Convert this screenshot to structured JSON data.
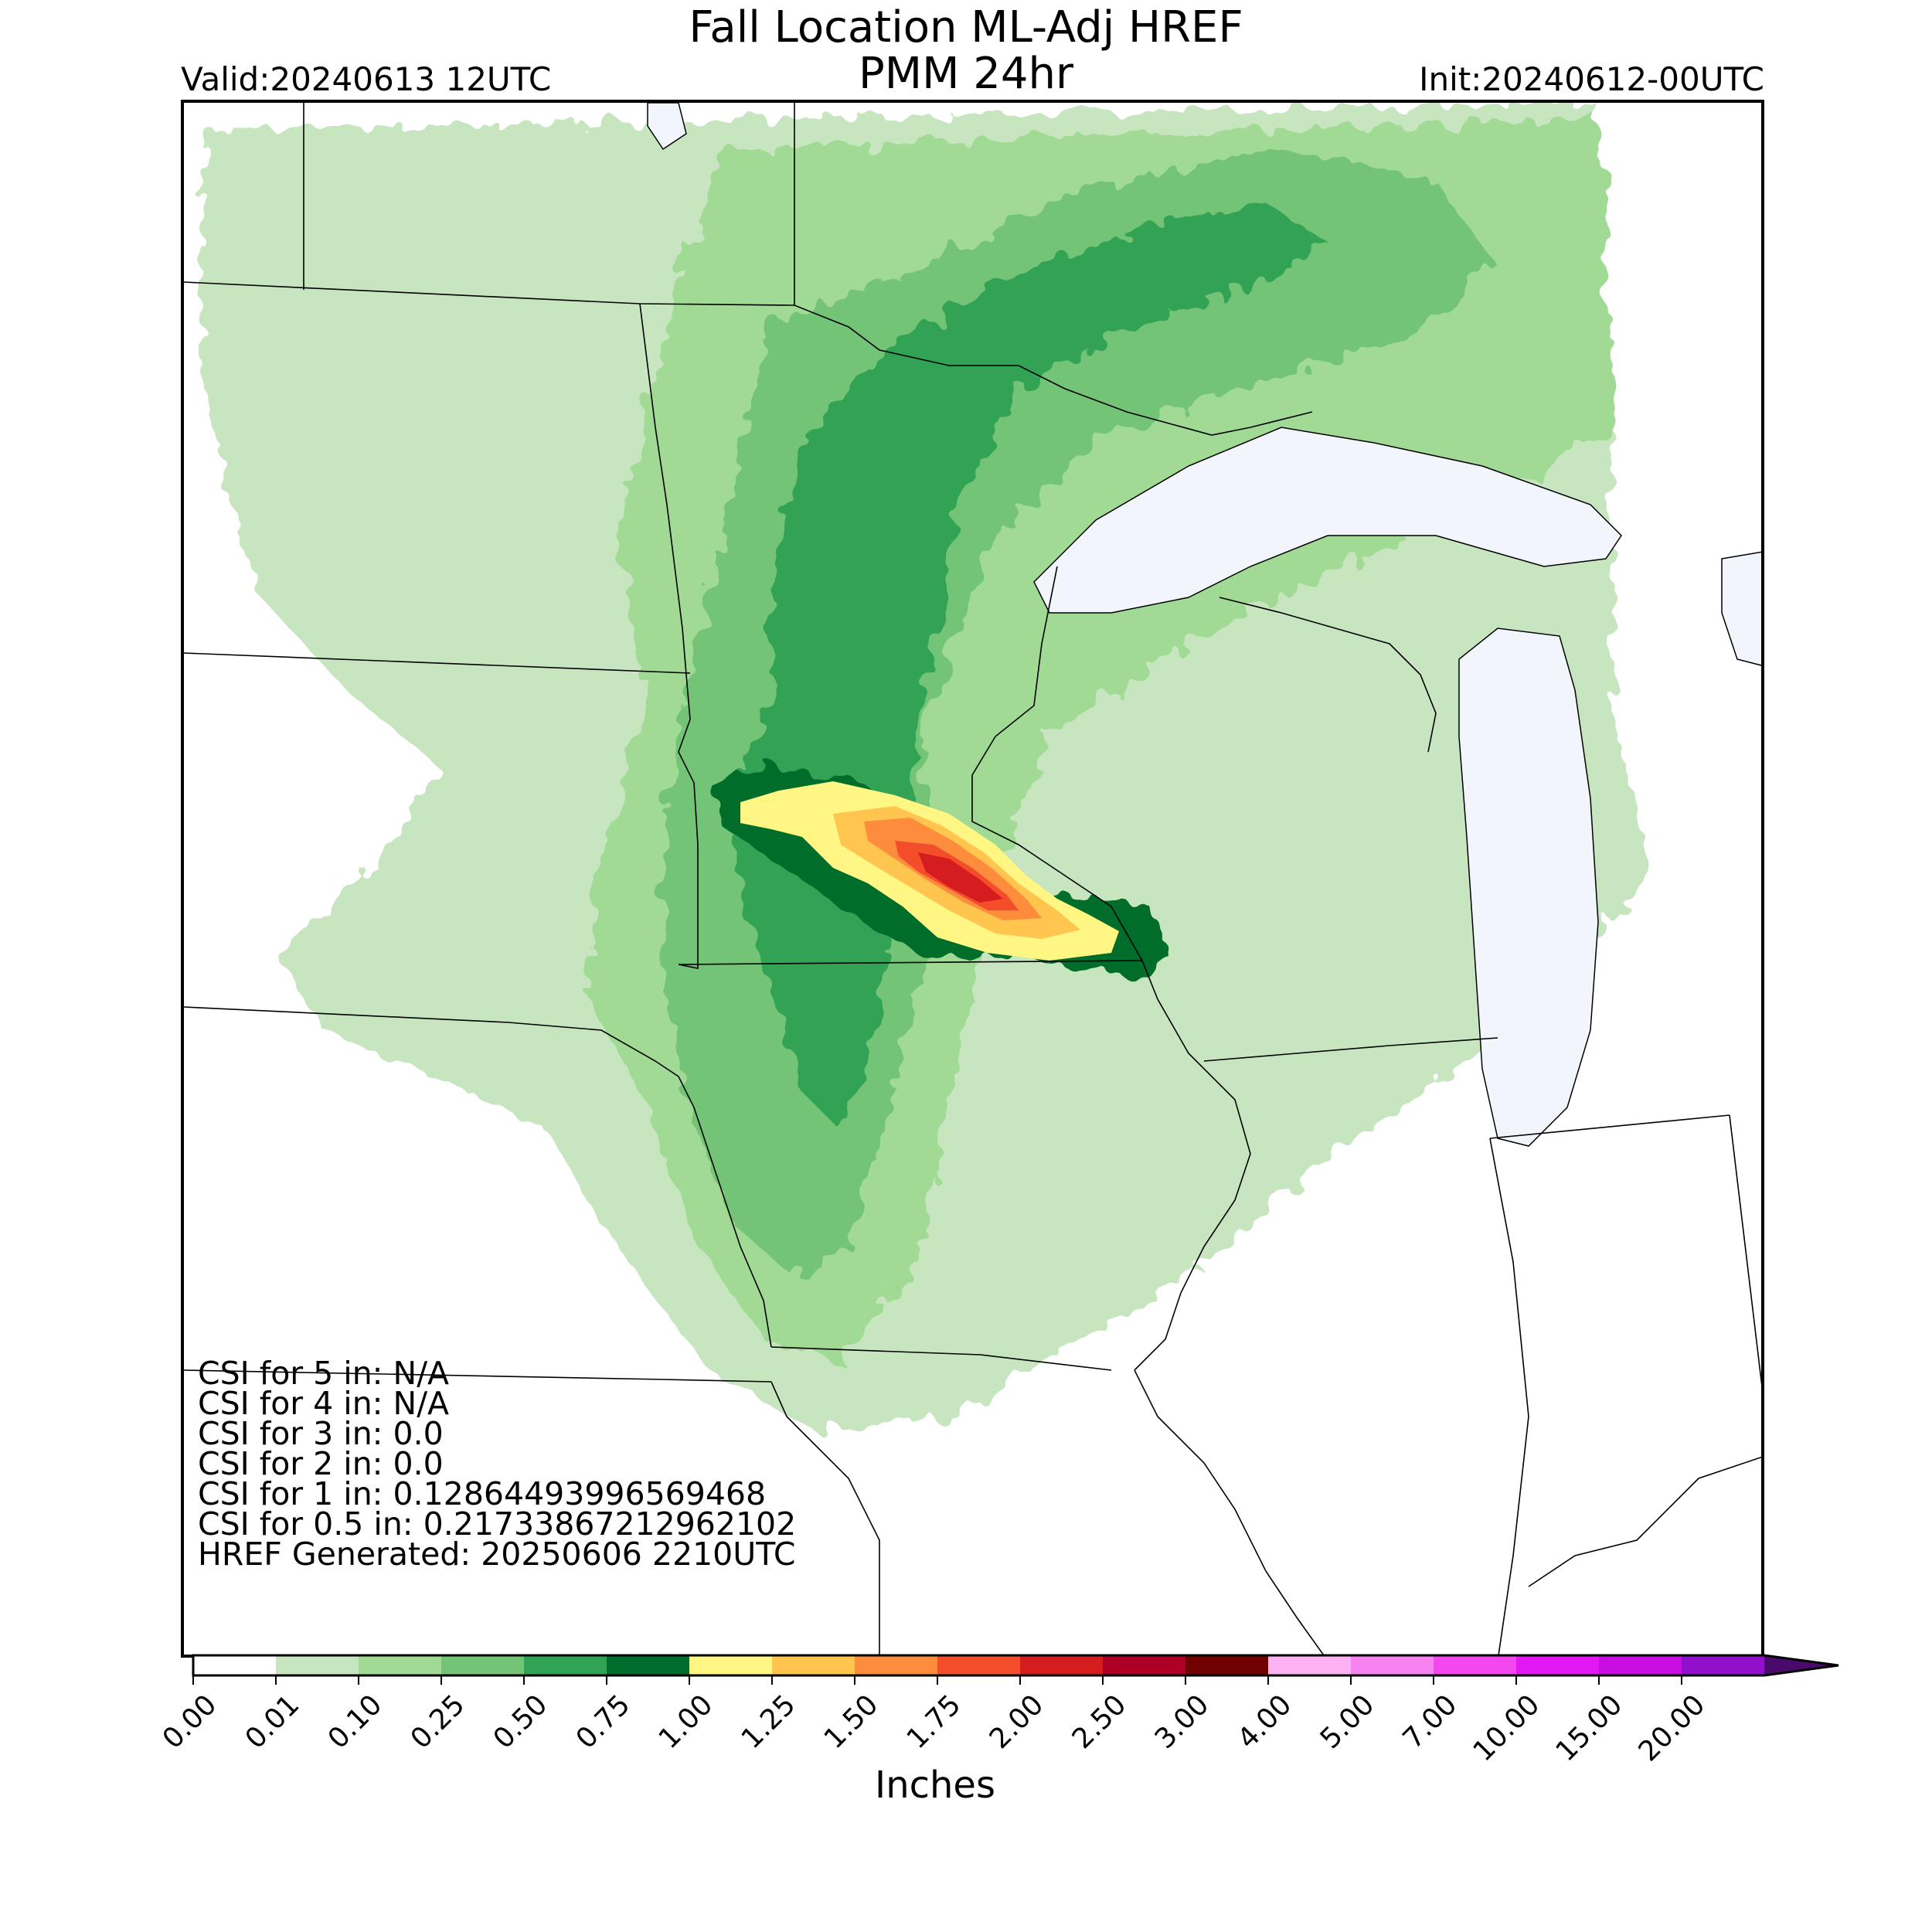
{
  "header": {
    "title_line1": "Fall Location ML-Adj HREF",
    "title_line2": "PMM 24hr",
    "valid": "Valid:20240613 12UTC",
    "init": "Init:20240612-00UTC"
  },
  "stats": [
    "CSI for 5 in: N/A",
    "CSI for 4 in: N/A",
    "CSI for 3 in: 0.0",
    "CSI for 2 in: 0.0",
    "CSI for 1 in: 0.12864493996569468",
    "CSI for 0.5 in: 0.21733867212962102",
    "HREF Generated: 20250606 2210UTC"
  ],
  "colorbar": {
    "label": "Inches",
    "ticks": [
      "0.00",
      "0.01",
      "0.10",
      "0.25",
      "0.50",
      "0.75",
      "1.00",
      "1.25",
      "1.50",
      "1.75",
      "2.00",
      "2.50",
      "3.00",
      "4.00",
      "5.00",
      "7.00",
      "10.00",
      "15.00",
      "20.00"
    ],
    "colors": [
      "#ffffff",
      "#c7e6c0",
      "#a1da94",
      "#73c476",
      "#31a354",
      "#006d2c",
      "#fff683",
      "#ffc54f",
      "#fd8c3c",
      "#f34d2c",
      "#d51d20",
      "#ae0026",
      "#710000",
      "#fbb3f4",
      "#f783f0",
      "#f547f0",
      "#e219f4",
      "#c90ee2",
      "#9010cc"
    ],
    "extend_color": "#4a0a6b"
  },
  "map_colors": {
    "water": "#f2f5fb",
    "border": "#000000",
    "band_0_01": "#c7e6c0",
    "band_0_10": "#a1da94",
    "band_0_25": "#73c476",
    "band_0_50": "#31a354",
    "band_0_75": "#006d2c",
    "band_1_00": "#fff683",
    "band_1_25": "#ffc54f",
    "band_1_50": "#fd8c3c",
    "band_1_75": "#f34d2c",
    "band_2_00": "#d51d20"
  }
}
